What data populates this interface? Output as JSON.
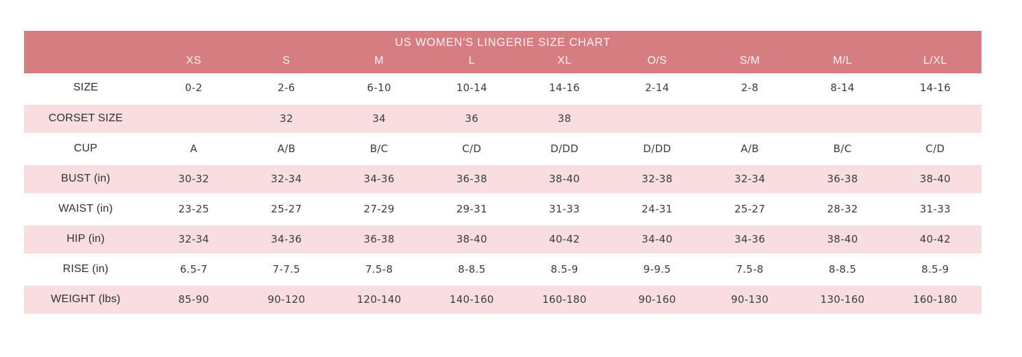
{
  "colors": {
    "page_bg": "#ffffff",
    "header_bg": "#d67d81",
    "header_text": "#fbf2f2",
    "stripe_bg": "#f9dee1",
    "body_text": "#3b3b3b"
  },
  "chart_data": {
    "type": "table",
    "title": "US WOMEN'S LINGERIE SIZE CHART",
    "columns": [
      "",
      "XS",
      "S",
      "M",
      "L",
      "XL",
      "O/S",
      "S/M",
      "M/L",
      "L/XL"
    ],
    "rows": [
      {
        "label": "SIZE",
        "values": [
          "0-2",
          "2-6",
          "6-10",
          "10-14",
          "14-16",
          "2-14",
          "2-8",
          "8-14",
          "14-16"
        ]
      },
      {
        "label": "CORSET SIZE",
        "values": [
          "",
          "32",
          "34",
          "36",
          "38",
          "",
          "",
          "",
          ""
        ]
      },
      {
        "label": "CUP",
        "values": [
          "A",
          "A/B",
          "B/C",
          "C/D",
          "D/DD",
          "D/DD",
          "A/B",
          "B/C",
          "C/D"
        ]
      },
      {
        "label": "BUST (in)",
        "values": [
          "30-32",
          "32-34",
          "34-36",
          "36-38",
          "38-40",
          "32-38",
          "32-34",
          "36-38",
          "38-40"
        ]
      },
      {
        "label": "WAIST (in)",
        "values": [
          "23-25",
          "25-27",
          "27-29",
          "29-31",
          "31-33",
          "24-31",
          "25-27",
          "28-32",
          "31-33"
        ]
      },
      {
        "label": "HIP (in)",
        "values": [
          "32-34",
          "34-36",
          "36-38",
          "38-40",
          "40-42",
          "34-40",
          "34-36",
          "38-40",
          "40-42"
        ]
      },
      {
        "label": "RISE (in)",
        "values": [
          "6.5-7",
          "7-7.5",
          "7.5-8",
          "8-8.5",
          "8.5-9",
          "9-9.5",
          "7.5-8",
          "8-8.5",
          "8.5-9"
        ]
      },
      {
        "label": "WEIGHT (lbs)",
        "values": [
          "85-90",
          "90-120",
          "120-140",
          "140-160",
          "160-180",
          "90-160",
          "90-130",
          "130-160",
          "160-180"
        ]
      }
    ]
  }
}
